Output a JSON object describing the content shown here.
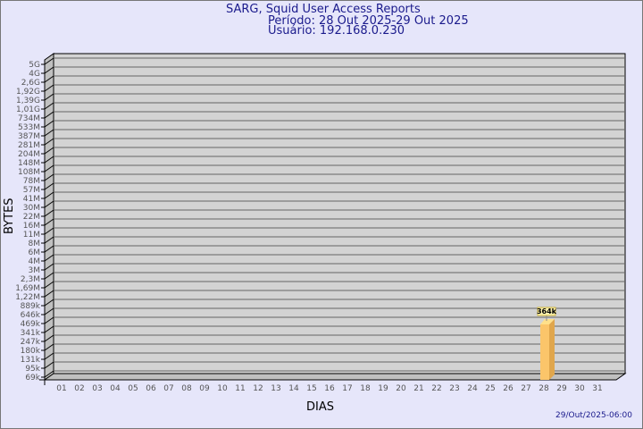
{
  "header": {
    "title": "SARG, Squid User Access Reports",
    "period": "Período: 28 Out 2025-29 Out 2025",
    "user": "Usuário: 192.168.0.230"
  },
  "footer": {
    "timestamp": "29/Out/2025-06:00"
  },
  "colors": {
    "background": "#e6e6fa",
    "plot": "#d3d3d3",
    "bar": "#fbc56a",
    "text": "#1a1a8c"
  },
  "chart_data": {
    "type": "bar",
    "xlabel": "DIAS",
    "ylabel": "BYTES",
    "y_scale": "log",
    "y_ticks": [
      "69k",
      "95k",
      "131k",
      "180k",
      "247k",
      "341k",
      "469k",
      "646k",
      "889k",
      "1,22M",
      "1,69M",
      "2,3M",
      "3M",
      "4M",
      "6M",
      "8M",
      "11M",
      "16M",
      "22M",
      "30M",
      "41M",
      "57M",
      "78M",
      "108M",
      "148M",
      "204M",
      "281M",
      "387M",
      "533M",
      "734M",
      "1,01G",
      "1,39G",
      "1,92G",
      "2,6G",
      "4G",
      "5G"
    ],
    "categories": [
      "01",
      "02",
      "03",
      "04",
      "05",
      "06",
      "07",
      "08",
      "09",
      "10",
      "11",
      "12",
      "13",
      "14",
      "15",
      "16",
      "17",
      "18",
      "19",
      "20",
      "21",
      "22",
      "23",
      "24",
      "25",
      "26",
      "27",
      "28",
      "29",
      "30",
      "31"
    ],
    "bars": [
      {
        "day": "28",
        "value": 364000,
        "label": "364k"
      }
    ],
    "grid": true
  }
}
